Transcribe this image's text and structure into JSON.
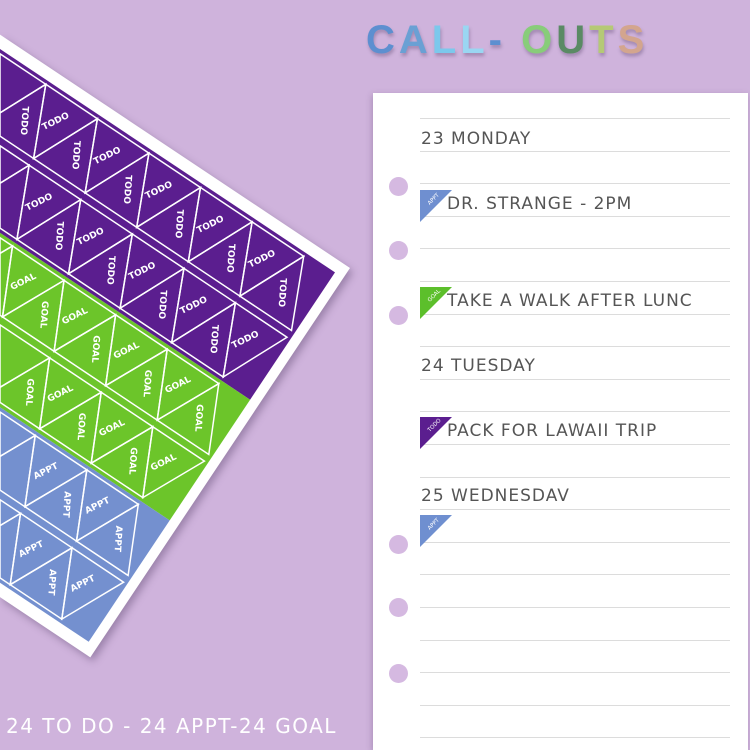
{
  "title": {
    "letters": [
      {
        "ch": "C",
        "color": "#5d8fd0"
      },
      {
        "ch": "A",
        "color": "#6aa0d4"
      },
      {
        "ch": "L",
        "color": "#7cc8ec"
      },
      {
        "ch": "L",
        "color": "#9ad6f2"
      },
      {
        "ch": "-",
        "color": "#5d8fd0"
      },
      {
        "ch": " ",
        "color": "#000"
      },
      {
        "ch": "O",
        "color": "#88cc7a"
      },
      {
        "ch": "U",
        "color": "#5a8a64"
      },
      {
        "ch": "T",
        "color": "#b5c976"
      },
      {
        "ch": "S",
        "color": "#d3a58e"
      }
    ]
  },
  "sticker_sheet": {
    "bands": [
      {
        "label": "TODO",
        "color": "#5b1e8f"
      },
      {
        "label": "GOAL",
        "color": "#6cc52a"
      },
      {
        "label": "APPT",
        "color": "#7490cf"
      }
    ]
  },
  "planner": {
    "entries": [
      {
        "text": "23 MONDAY",
        "tag": null
      },
      {
        "text": "DR. STRANGE - 2PM",
        "tag": "APPT"
      },
      {
        "text": "TAKE A WALK AFTER LUNC",
        "tag": "GOAL"
      },
      {
        "text": "24 TUESDAY",
        "tag": null
      },
      {
        "text": "PACK FOR LAWAII TRIP",
        "tag": "TODO"
      },
      {
        "text": "25 WEDNESDAV",
        "tag": null
      },
      {
        "text": "",
        "tag": "APPT"
      }
    ],
    "tag_colors": {
      "APPT": "#6f8fd0",
      "GOAL": "#5cbf2b",
      "TODO": "#5b1e8f"
    }
  },
  "footer": "24 TO DO - 24 APPT-24 GOAL"
}
